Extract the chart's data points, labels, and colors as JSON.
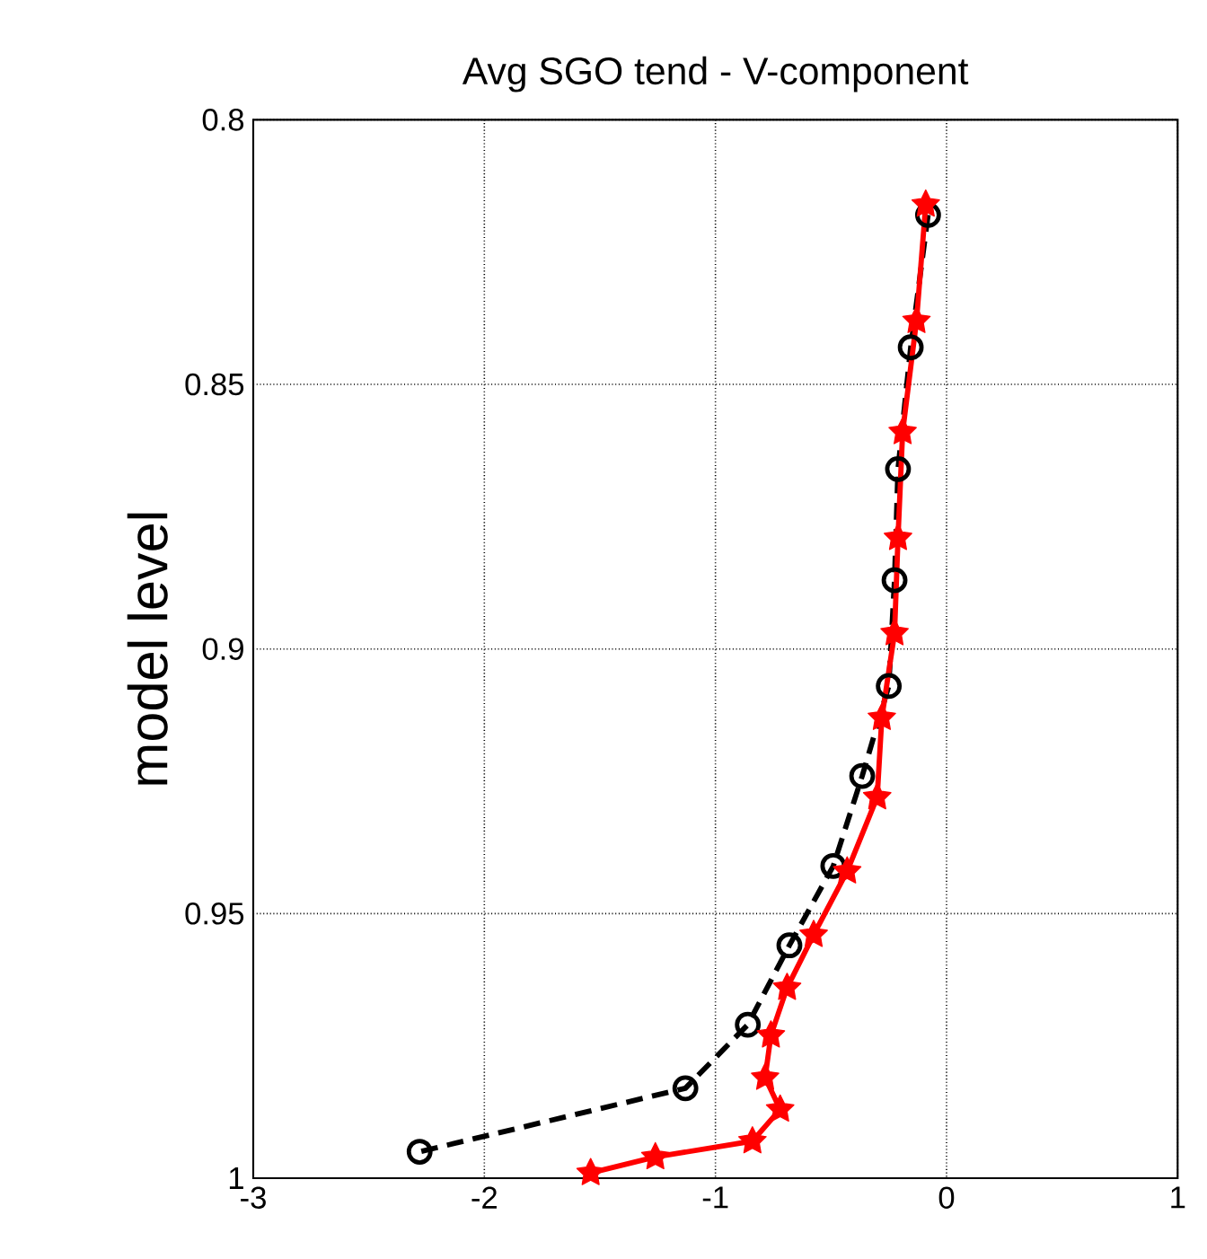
{
  "chart_data": {
    "type": "line",
    "title": "Avg SGO tend - V-component",
    "ylabel": "model level",
    "xlim": [
      -3,
      1
    ],
    "xticks": [
      -3,
      -2,
      -1,
      0,
      1
    ],
    "ylim": [
      1,
      0.8
    ],
    "yticks": [
      0.8,
      0.85,
      0.9,
      0.95,
      1
    ],
    "grid": true,
    "series": [
      {
        "color": "#000000",
        "marker": "circle",
        "line_style": "dashed",
        "x": [
          -0.08,
          -0.155,
          -0.21,
          -0.225,
          -0.25,
          -0.365,
          -0.49,
          -0.68,
          -0.86,
          -1.13,
          -2.28
        ],
        "values": [
          0.818,
          0.843,
          0.866,
          0.887,
          0.907,
          0.924,
          0.941,
          0.956,
          0.971,
          0.983,
          0.995
        ]
      },
      {
        "color": "#ff0000",
        "marker": "star",
        "line_style": "solid",
        "x": [
          -0.09,
          -0.13,
          -0.19,
          -0.21,
          -0.225,
          -0.28,
          -0.3,
          -0.43,
          -0.575,
          -0.69,
          -0.76,
          -0.785,
          -0.72,
          -0.84,
          -1.26,
          -1.54
        ],
        "values": [
          0.816,
          0.838,
          0.859,
          0.879,
          0.897,
          0.913,
          0.928,
          0.942,
          0.954,
          0.964,
          0.973,
          0.981,
          0.987,
          0.993,
          0.996,
          0.999
        ]
      }
    ]
  }
}
